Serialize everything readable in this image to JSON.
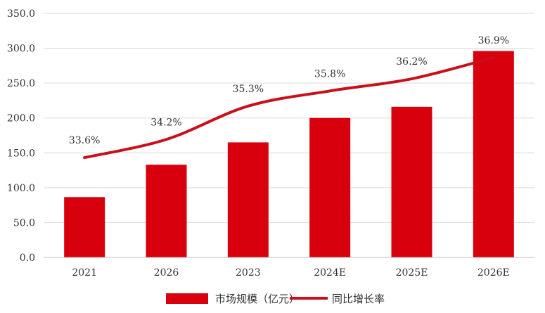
{
  "chart_data": {
    "type": "bar",
    "categories": [
      "2021",
      "2026",
      "2023",
      "2024E",
      "2025E",
      "2026E"
    ],
    "series": [
      {
        "name": "市场规模（亿元）",
        "type": "bar",
        "axis": "left",
        "values": [
          86.5,
          133.0,
          165.0,
          200.0,
          216.0,
          296.0
        ]
      },
      {
        "name": "同比增长率",
        "type": "line",
        "axis": "right-hidden",
        "values": [
          33.6,
          34.2,
          35.3,
          35.8,
          36.2,
          36.9
        ],
        "labels": [
          "33.6%",
          "34.2%",
          "35.3%",
          "35.8%",
          "36.2%",
          "36.9%"
        ]
      }
    ],
    "ylim": [
      0,
      350
    ],
    "yticks": [
      "0.0",
      "50.0",
      "100.0",
      "150.0",
      "200.0",
      "250.0",
      "300.0",
      "350.0"
    ],
    "title": "",
    "xlabel": "",
    "ylabel": "",
    "grid": true,
    "legend_position": "bottom-center",
    "colors": {
      "bar": "#d9000d",
      "line": "#c8101a",
      "grid": "#d9d9d9"
    }
  }
}
